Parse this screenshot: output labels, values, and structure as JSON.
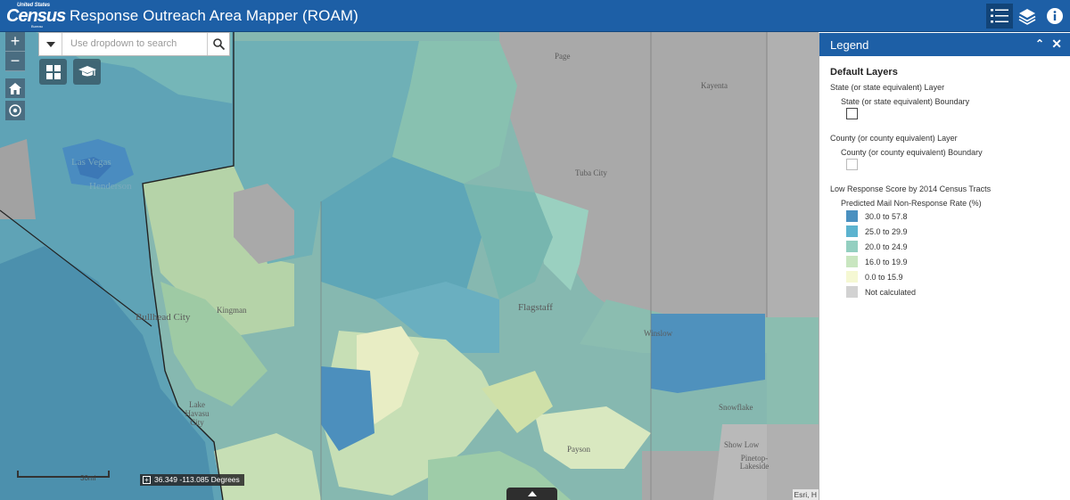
{
  "header": {
    "logo_small": "United States",
    "logo_main": "Census",
    "logo_bureau": "Bureau",
    "title": "Response Outreach Area Mapper (ROAM)",
    "buttons": [
      {
        "icon": "legend-list-icon",
        "active": true
      },
      {
        "icon": "layers-icon",
        "active": false
      },
      {
        "icon": "info-icon",
        "active": false
      }
    ]
  },
  "map": {
    "zoom_in": "+",
    "zoom_out": "−",
    "search": {
      "placeholder": "Use dropdown to search"
    },
    "labels": [
      {
        "text": "Page"
      },
      {
        "text": "Kayenta"
      },
      {
        "text": "Las Vegas"
      },
      {
        "text": "Henderson"
      },
      {
        "text": "Tuba City"
      },
      {
        "text": "Kingman"
      },
      {
        "text": "Bullhead City"
      },
      {
        "text": "Flagstaff"
      },
      {
        "text": "Winslow"
      },
      {
        "text": "Lake Havasu City"
      },
      {
        "text": "Snowflake"
      },
      {
        "text": "Show Low"
      },
      {
        "text": "Payson"
      },
      {
        "text": "Pinetop-Lakeside"
      }
    ],
    "scale_label": "30mi",
    "coordinates": "36.349 -113.085 Degrees",
    "attribution": "Esri, H"
  },
  "legend": {
    "title": "Legend",
    "section_title": "Default Layers",
    "state_layer": "State (or state equivalent) Layer",
    "state_boundary": "State (or state equivalent) Boundary",
    "county_layer": "County (or county equivalent) Layer",
    "county_boundary": "County (or county equivalent) Boundary",
    "lrs_layer": "Low Response Score by 2014 Census Tracts",
    "lrs_field": "Predicted Mail Non-Response Rate (%)",
    "classes": [
      {
        "label": "30.0 to 57.8",
        "color": "#4a90c0"
      },
      {
        "label": "25.0 to 29.9",
        "color": "#5cb3cf"
      },
      {
        "label": "20.0 to 24.9",
        "color": "#93cfc0"
      },
      {
        "label": "16.0 to 19.9",
        "color": "#c9e6c0"
      },
      {
        "label": "0.0 to 15.9",
        "color": "#f5f8d3"
      },
      {
        "label": "Not calculated",
        "color": "#d2d2d2"
      }
    ]
  }
}
